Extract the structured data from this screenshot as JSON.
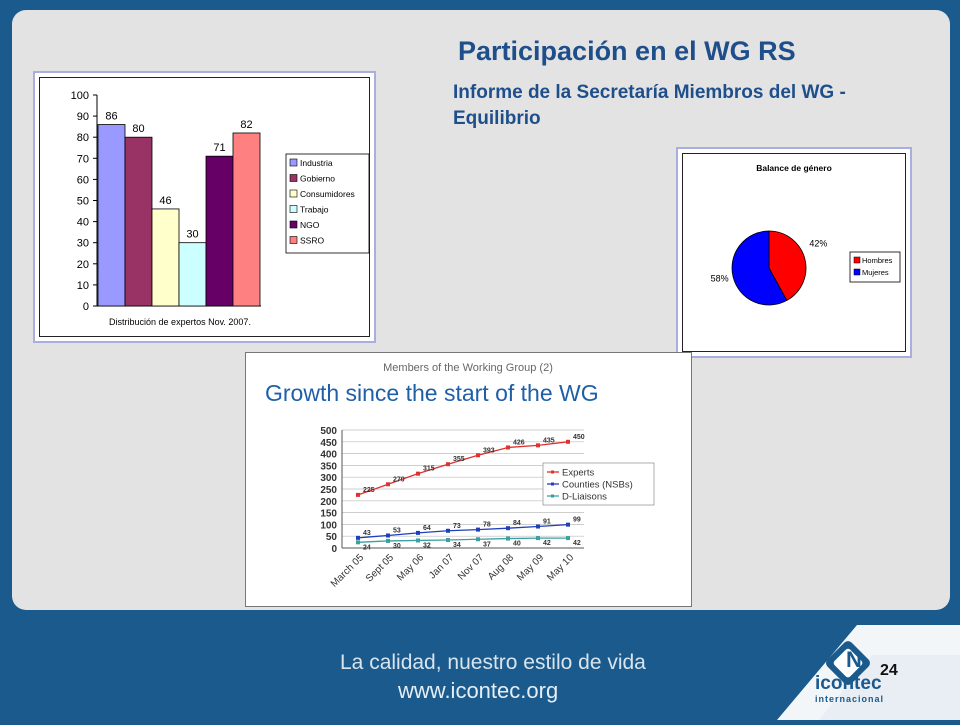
{
  "slide": {
    "title": "Participación en el WG RS",
    "subtitle": "Informe de la Secretaría Miembros del WG -  Equilibrio",
    "page_number": "24"
  },
  "footer": {
    "tagline": "La calidad, nuestro estilo de vida",
    "url": "www.icontec.org",
    "logo_text": "icontec",
    "logo_subtext": "internacional"
  },
  "colors": {
    "background": "#1a5a8c",
    "title": "#1f4f8b"
  },
  "chart_data": [
    {
      "type": "bar",
      "xlabel": "Distribución de expertos Nov. 2007.",
      "ylim": [
        0,
        100
      ],
      "yticks": [
        "0",
        "10",
        "20",
        "30",
        "40",
        "50",
        "60",
        "70",
        "80",
        "90",
        "100"
      ],
      "legend_position": "right",
      "series": [
        {
          "name": "Industria",
          "value": 86,
          "color": "#9999ff"
        },
        {
          "name": "Gobierno",
          "value": 80,
          "color": "#993366"
        },
        {
          "name": "Consumidores",
          "value": 46,
          "color": "#ffffcc"
        },
        {
          "name": "Trabajo",
          "value": 30,
          "color": "#ccffff"
        },
        {
          "name": "NGO",
          "value": 71,
          "color": "#660066"
        },
        {
          "name": "SSRO",
          "value": 82,
          "color": "#ff8080"
        }
      ]
    },
    {
      "type": "pie",
      "title": "Balance de género",
      "legend_position": "right",
      "slices": [
        {
          "name": "Hombres",
          "value": 42,
          "label": "42%",
          "color": "#ff0000"
        },
        {
          "name": "Mujeres",
          "value": 58,
          "label": "58%",
          "color": "#0000ff"
        }
      ]
    },
    {
      "type": "line",
      "supertitle": "Members of the Working Group (2)",
      "title": "Growth since the start of the WG",
      "ylim": [
        0,
        500
      ],
      "yticks": [
        "0",
        "50",
        "100",
        "150",
        "200",
        "250",
        "300",
        "350",
        "400",
        "450",
        "500"
      ],
      "categories": [
        "March 05",
        "Sept 05",
        "May 06",
        "Jan 07",
        "Nov 07",
        "Aug 08",
        "May 09",
        "May 10"
      ],
      "legend_position": "right",
      "series": [
        {
          "name": "Experts",
          "color": "#e03030",
          "values": [
            225,
            270,
            315,
            355,
            393,
            426,
            435,
            450
          ]
        },
        {
          "name": "Counties (NSBs)",
          "color": "#1f3fbf",
          "values": [
            43,
            53,
            64,
            73,
            78,
            84,
            91,
            99
          ]
        },
        {
          "name": "D-Liaisons",
          "color": "#3aa0a0",
          "values": [
            24,
            30,
            32,
            34,
            37,
            40,
            42,
            42
          ]
        }
      ]
    }
  ]
}
